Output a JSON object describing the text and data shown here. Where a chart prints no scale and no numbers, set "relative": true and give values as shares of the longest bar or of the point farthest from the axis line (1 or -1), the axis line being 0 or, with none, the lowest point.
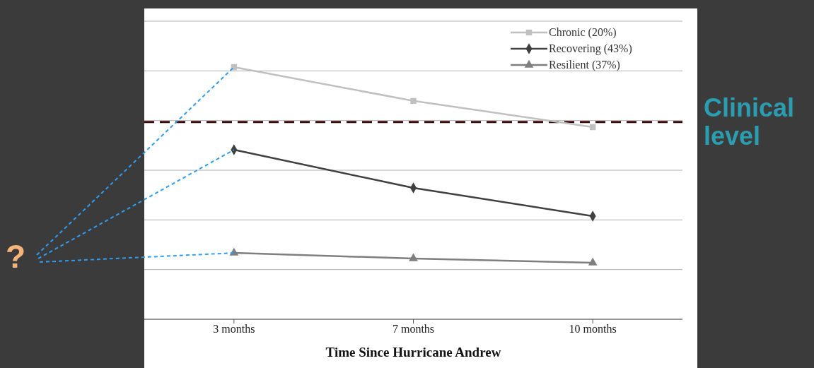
{
  "chart_data": {
    "type": "line",
    "relative": true,
    "xlabel": "Time Since Hurricane Andrew",
    "categories": [
      "3 months",
      "7 months",
      "10 months"
    ],
    "series": [
      {
        "name": "Chronic (20%)",
        "color": "#c0c0c0",
        "marker": "square",
        "values": [
          1,
          0.866,
          0.762
        ]
      },
      {
        "name": "Recovering (43%)",
        "color": "#404040",
        "marker": "diamond",
        "values": [
          0.672,
          0.521,
          0.409
        ]
      },
      {
        "name": "Resilient (37%)",
        "color": "#7f7f7f",
        "marker": "triangle",
        "values": [
          0.263,
          0.241,
          0.224
        ]
      }
    ],
    "ref_lines": [
      {
        "axis": "y",
        "value": 0.782,
        "label": "Clinical level",
        "color": "#3a0a0a",
        "line_style": "dashed"
      }
    ],
    "annotations": [
      "?"
    ],
    "grid": "y",
    "legend": "top right",
    "line_style": "solid"
  }
}
